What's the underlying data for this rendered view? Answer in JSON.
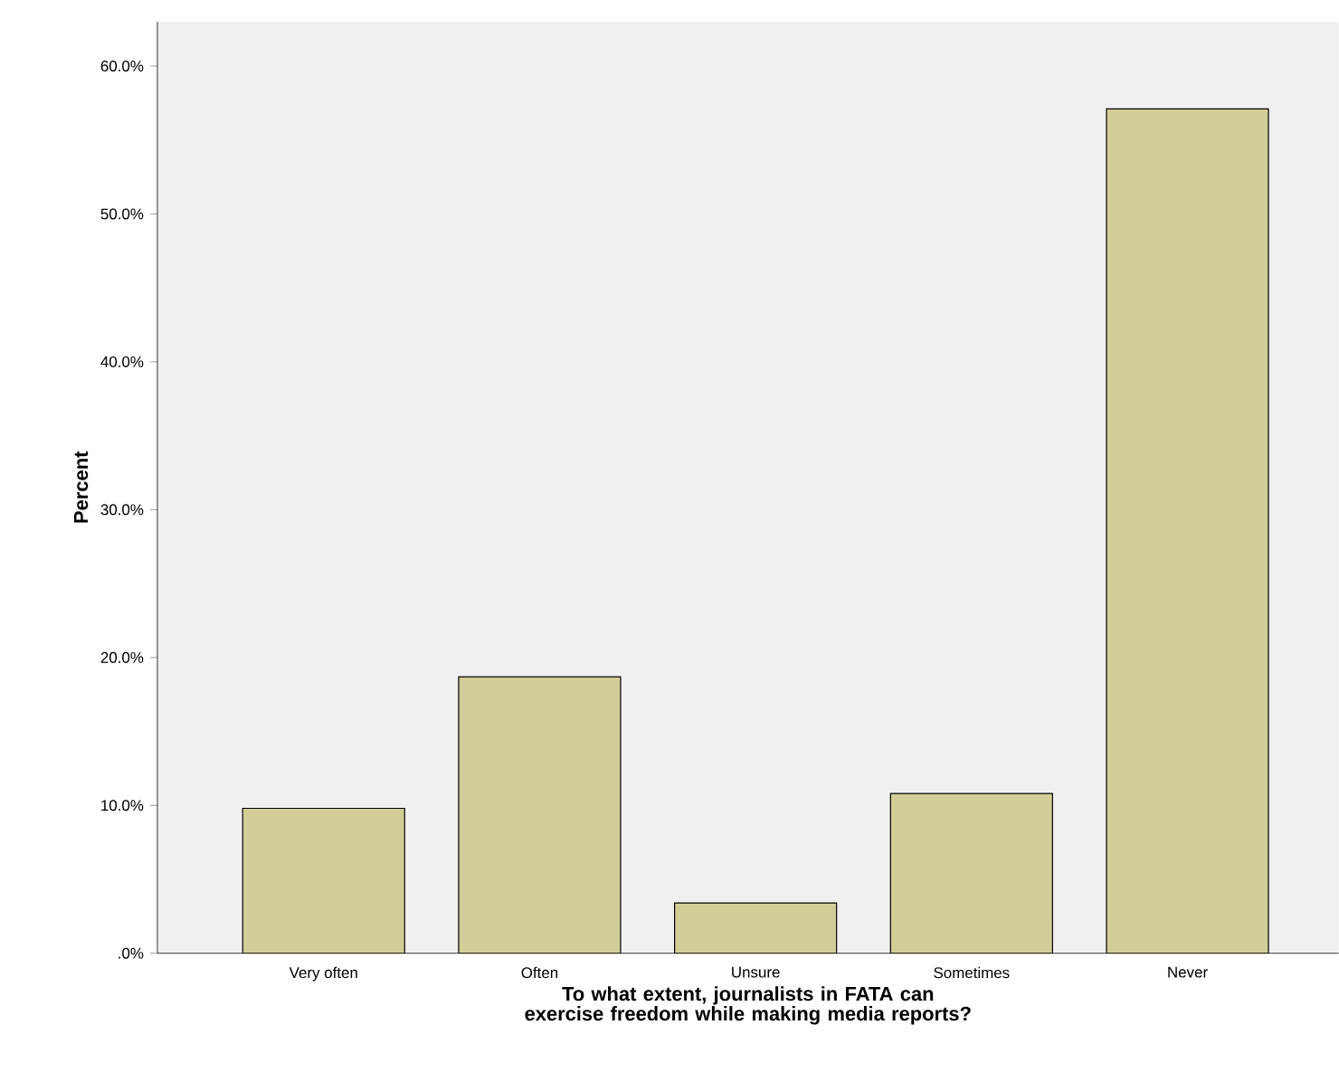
{
  "chart_data": {
    "type": "bar",
    "xlabel": "To what extent, journalists in FATA can exercise freedom while making media reports?",
    "ylabel": "Percent",
    "categories": [
      "Very often",
      "Often",
      "Unsure",
      "Sometimes",
      "Never"
    ],
    "values": [
      9.8,
      18.7,
      3.4,
      10.8,
      57.1
    ],
    "color": "#d3ce97",
    "ylim": [
      0,
      63
    ],
    "yticks": [
      {
        "value": 0,
        "label": ".0%"
      },
      {
        "value": 10,
        "label": "10.0%"
      },
      {
        "value": 20,
        "label": "20.0%"
      },
      {
        "value": 30,
        "label": "30.0%"
      },
      {
        "value": 40,
        "label": "40.0%"
      },
      {
        "value": 50,
        "label": "50.0%"
      },
      {
        "value": 60,
        "label": "60.0%"
      }
    ],
    "grid": false
  }
}
